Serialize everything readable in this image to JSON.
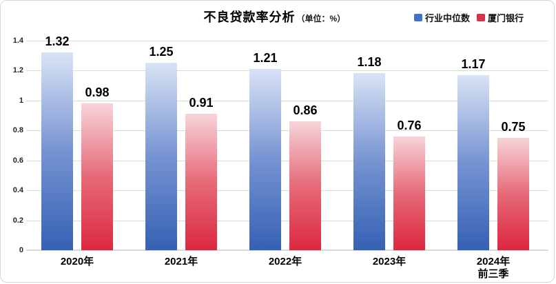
{
  "title": {
    "text": "不良贷款率分析",
    "unit": "（单位：%）"
  },
  "chart_data": {
    "type": "bar",
    "title": "不良贷款率分析",
    "unit_label": "（单位：%）",
    "categories": [
      "2020年",
      "2021年",
      "2022年",
      "2023年",
      "2024年\n前三季"
    ],
    "series": [
      {
        "name": "行业中位数",
        "values": [
          1.32,
          1.25,
          1.21,
          1.18,
          1.17
        ],
        "legend_color": "#4472c4",
        "gradient_top": "#d9e3f5",
        "gradient_mid": "#7693d2",
        "gradient_bottom": "#3561b4"
      },
      {
        "name": "厦门银行",
        "values": [
          0.98,
          0.91,
          0.86,
          0.76,
          0.75
        ],
        "legend_color": "#d2344b",
        "gradient_top": "#f7d4da",
        "gradient_mid": "#e66a78",
        "gradient_bottom": "#dc2840"
      }
    ],
    "yticks": [
      0,
      0.2,
      0.4,
      0.6,
      0.8,
      1,
      1.2,
      1.4
    ],
    "ylim": [
      0,
      1.4
    ],
    "grid": true,
    "gridline_color": "#cbe6ca",
    "baseline_color": "#d9d9d9",
    "legend_position": "top-right",
    "value_labels": true
  }
}
